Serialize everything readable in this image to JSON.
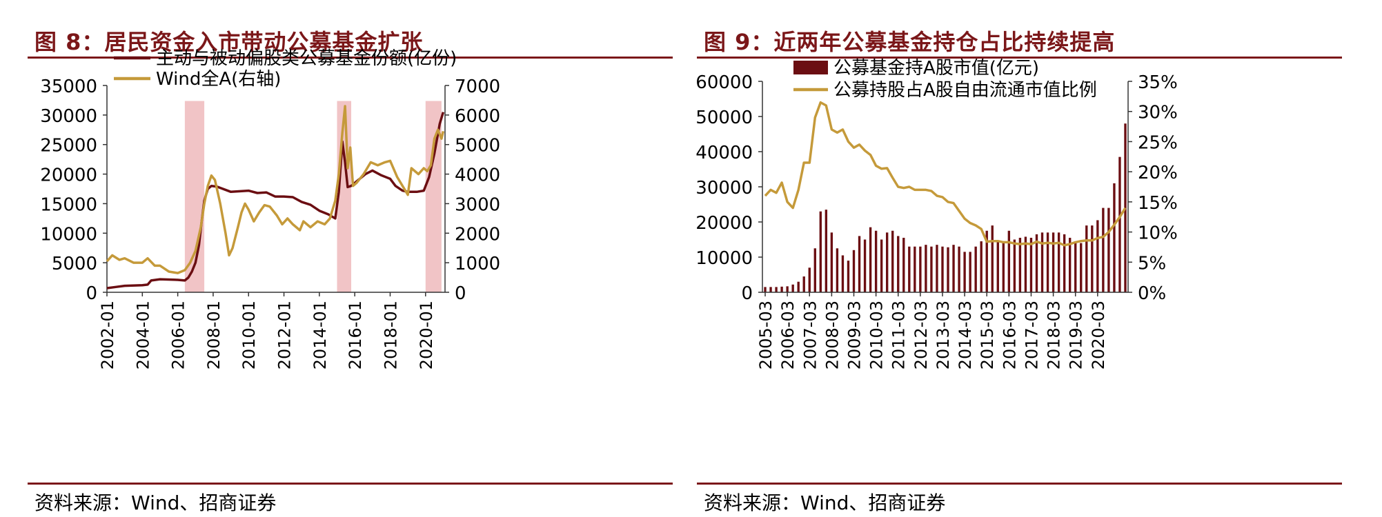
{
  "colors": {
    "brand": "#7b1719",
    "series_dark": "#6b0e12",
    "series_gold": "#c59a3a",
    "shade": "#f1c4c6"
  },
  "left": {
    "title": "图 8：居民资金入市带动公募基金扩张",
    "source": "资料来源：Wind、招商证券"
  },
  "right": {
    "title": "图 9：近两年公募基金持仓占比持续提高",
    "source": "资料来源：Wind、招商证券"
  },
  "chart_data": [
    {
      "type": "line",
      "legend_position": "top",
      "grid": false,
      "x_ticks": [
        "2002-01",
        "2004-01",
        "2006-01",
        "2008-01",
        "2010-01",
        "2012-01",
        "2014-01",
        "2016-01",
        "2018-01",
        "2020-01"
      ],
      "x_range": [
        2002.0,
        2021.1
      ],
      "y_left": {
        "range": [
          0,
          35000
        ],
        "ticks": [
          "0",
          "5000",
          "10000",
          "15000",
          "20000",
          "25000",
          "30000",
          "35000"
        ]
      },
      "y_right": {
        "range": [
          0,
          7000
        ],
        "ticks": [
          "0",
          "1000",
          "2000",
          "3000",
          "4000",
          "5000",
          "6000",
          "7000"
        ]
      },
      "shaded_periods": [
        [
          2006.4,
          2007.5
        ],
        [
          2015.0,
          2015.8
        ],
        [
          2020.0,
          2020.9
        ]
      ],
      "series": [
        {
          "name": "主动与被动偏股类公募基金份额(亿份)",
          "axis": "left",
          "points": [
            [
              2002.0,
              700
            ],
            [
              2002.5,
              900
            ],
            [
              2003.0,
              1100
            ],
            [
              2004.0,
              1200
            ],
            [
              2004.3,
              1300
            ],
            [
              2004.5,
              2000
            ],
            [
              2005.0,
              2200
            ],
            [
              2006.0,
              2100
            ],
            [
              2006.4,
              2000
            ],
            [
              2006.6,
              2500
            ],
            [
              2006.8,
              3500
            ],
            [
              2007.0,
              5000
            ],
            [
              2007.2,
              8000
            ],
            [
              2007.35,
              12000
            ],
            [
              2007.5,
              15500
            ],
            [
              2007.7,
              17500
            ],
            [
              2007.9,
              18000
            ],
            [
              2008.2,
              17900
            ],
            [
              2009.0,
              17000
            ],
            [
              2010.0,
              17200
            ],
            [
              2010.5,
              16800
            ],
            [
              2011.0,
              16900
            ],
            [
              2011.5,
              16200
            ],
            [
              2012.0,
              16200
            ],
            [
              2012.5,
              16100
            ],
            [
              2013.0,
              15300
            ],
            [
              2013.5,
              14800
            ],
            [
              2014.0,
              13800
            ],
            [
              2014.5,
              13200
            ],
            [
              2014.9,
              12500
            ],
            [
              2015.1,
              17000
            ],
            [
              2015.3,
              25500
            ],
            [
              2015.45,
              22000
            ],
            [
              2015.6,
              17800
            ],
            [
              2015.8,
              18000
            ],
            [
              2016.2,
              19000
            ],
            [
              2016.6,
              20000
            ],
            [
              2017.0,
              20600
            ],
            [
              2017.5,
              19800
            ],
            [
              2018.0,
              19200
            ],
            [
              2018.3,
              18000
            ],
            [
              2018.7,
              17200
            ],
            [
              2019.0,
              17000
            ],
            [
              2019.5,
              17000
            ],
            [
              2019.9,
              17200
            ],
            [
              2020.2,
              19500
            ],
            [
              2020.5,
              23500
            ],
            [
              2020.8,
              28500
            ],
            [
              2021.0,
              30500
            ]
          ]
        },
        {
          "name": "Wind全A(右轴)",
          "axis": "right",
          "points": [
            [
              2002.0,
              1050
            ],
            [
              2002.3,
              1250
            ],
            [
              2002.7,
              1100
            ],
            [
              2003.0,
              1150
            ],
            [
              2003.5,
              1000
            ],
            [
              2004.0,
              1000
            ],
            [
              2004.3,
              1150
            ],
            [
              2004.7,
              900
            ],
            [
              2005.0,
              900
            ],
            [
              2005.5,
              700
            ],
            [
              2006.0,
              650
            ],
            [
              2006.4,
              750
            ],
            [
              2006.7,
              1000
            ],
            [
              2007.0,
              1400
            ],
            [
              2007.3,
              2200
            ],
            [
              2007.5,
              3000
            ],
            [
              2007.7,
              3600
            ],
            [
              2007.9,
              3950
            ],
            [
              2008.1,
              3800
            ],
            [
              2008.4,
              3000
            ],
            [
              2008.7,
              2000
            ],
            [
              2008.9,
              1250
            ],
            [
              2009.1,
              1500
            ],
            [
              2009.4,
              2200
            ],
            [
              2009.6,
              2700
            ],
            [
              2009.8,
              3000
            ],
            [
              2010.0,
              2800
            ],
            [
              2010.3,
              2400
            ],
            [
              2010.6,
              2700
            ],
            [
              2010.9,
              2950
            ],
            [
              2011.2,
              2900
            ],
            [
              2011.6,
              2600
            ],
            [
              2011.9,
              2300
            ],
            [
              2012.2,
              2500
            ],
            [
              2012.5,
              2300
            ],
            [
              2012.9,
              2100
            ],
            [
              2013.1,
              2400
            ],
            [
              2013.5,
              2200
            ],
            [
              2013.9,
              2400
            ],
            [
              2014.3,
              2300
            ],
            [
              2014.6,
              2500
            ],
            [
              2014.9,
              3100
            ],
            [
              2015.1,
              4000
            ],
            [
              2015.3,
              5400
            ],
            [
              2015.45,
              6300
            ],
            [
              2015.6,
              4200
            ],
            [
              2015.75,
              4900
            ],
            [
              2015.9,
              3600
            ],
            [
              2016.1,
              3700
            ],
            [
              2016.5,
              4000
            ],
            [
              2016.9,
              4400
            ],
            [
              2017.3,
              4300
            ],
            [
              2017.7,
              4400
            ],
            [
              2018.0,
              4450
            ],
            [
              2018.4,
              3900
            ],
            [
              2018.8,
              3500
            ],
            [
              2019.0,
              3300
            ],
            [
              2019.2,
              4200
            ],
            [
              2019.6,
              4000
            ],
            [
              2019.9,
              4200
            ],
            [
              2020.1,
              4100
            ],
            [
              2020.3,
              4300
            ],
            [
              2020.5,
              5200
            ],
            [
              2020.7,
              5500
            ],
            [
              2020.9,
              5200
            ],
            [
              2021.0,
              5450
            ]
          ]
        }
      ]
    },
    {
      "type": "bar",
      "legend_position": "top",
      "grid": false,
      "x_ticks": [
        "2005-03",
        "2006-03",
        "2007-03",
        "2008-03",
        "2009-03",
        "2010-03",
        "2011-03",
        "2012-03",
        "2013-03",
        "2014-03",
        "2015-03",
        "2016-03",
        "2017-03",
        "2018-03",
        "2019-03",
        "2020-03"
      ],
      "y_left": {
        "range": [
          0,
          60000
        ],
        "ticks": [
          "0",
          "10000",
          "20000",
          "30000",
          "40000",
          "50000",
          "60000"
        ]
      },
      "y_right": {
        "range": [
          0,
          35
        ],
        "ticks": [
          "0%",
          "5%",
          "10%",
          "15%",
          "20%",
          "25%",
          "30%",
          "35%"
        ]
      },
      "start_quarter": "2005-03",
      "series": [
        {
          "name": "公募基金持A股市值(亿元)",
          "axis": "left",
          "type": "bar",
          "values": [
            1500,
            1500,
            1500,
            1600,
            1700,
            2200,
            3000,
            4500,
            7000,
            12500,
            23000,
            23500,
            17000,
            12500,
            10500,
            9000,
            12000,
            16000,
            15000,
            18500,
            17500,
            15000,
            17000,
            17500,
            16000,
            15500,
            13000,
            13000,
            13000,
            13500,
            13000,
            13500,
            13000,
            12800,
            13500,
            13000,
            11500,
            11500,
            13000,
            14500,
            17500,
            19000,
            14500,
            14500,
            17500,
            15000,
            15500,
            15800,
            15500,
            16500,
            17000,
            17000,
            17000,
            17000,
            16500,
            15500,
            14500,
            14000,
            19000,
            19000,
            20500,
            24000,
            24000,
            31000,
            38500,
            48000
          ]
        },
        {
          "name": "公募持股占A股自由流通市值比例",
          "axis": "right",
          "type": "line",
          "values": [
            16,
            17,
            16.5,
            18.2,
            15,
            14,
            17,
            21.5,
            21.5,
            29,
            31.5,
            31,
            27,
            26.5,
            27,
            25,
            24,
            24.5,
            23.5,
            22.8,
            21,
            20.5,
            20.6,
            19,
            17.5,
            17.3,
            17.5,
            17,
            17,
            17,
            16.8,
            16,
            15.8,
            15,
            14.8,
            13.5,
            12.2,
            11.5,
            11.1,
            10.5,
            8.4,
            8.5,
            8.5,
            8.3,
            8.3,
            8.1,
            8,
            8.1,
            8,
            8.4,
            8.1,
            8.2,
            8.1,
            8.2,
            7.8,
            8,
            8.3,
            8.5,
            8.6,
            8.6,
            9,
            9.2,
            10,
            11.2,
            12.5,
            14
          ]
        }
      ]
    }
  ]
}
